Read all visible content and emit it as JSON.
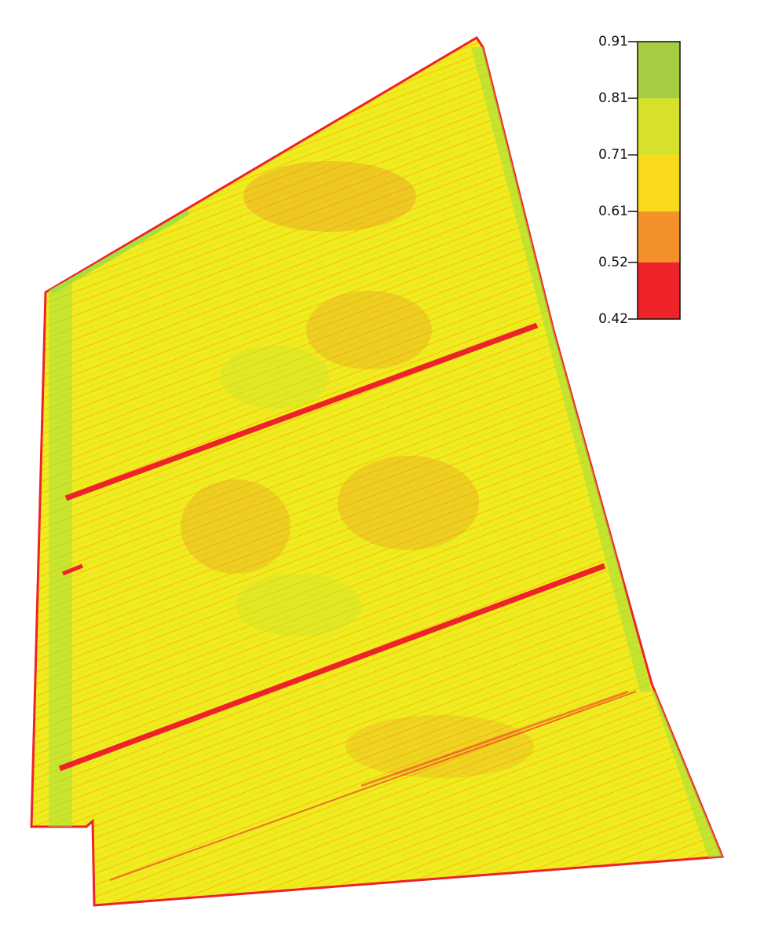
{
  "legend": {
    "ticks": [
      0.91,
      0.81,
      0.71,
      0.61,
      0.52,
      0.42
    ],
    "colors": [
      "#a6cc44",
      "#d7e12c",
      "#f9d91b",
      "#f39029",
      "#ee2229"
    ]
  }
}
